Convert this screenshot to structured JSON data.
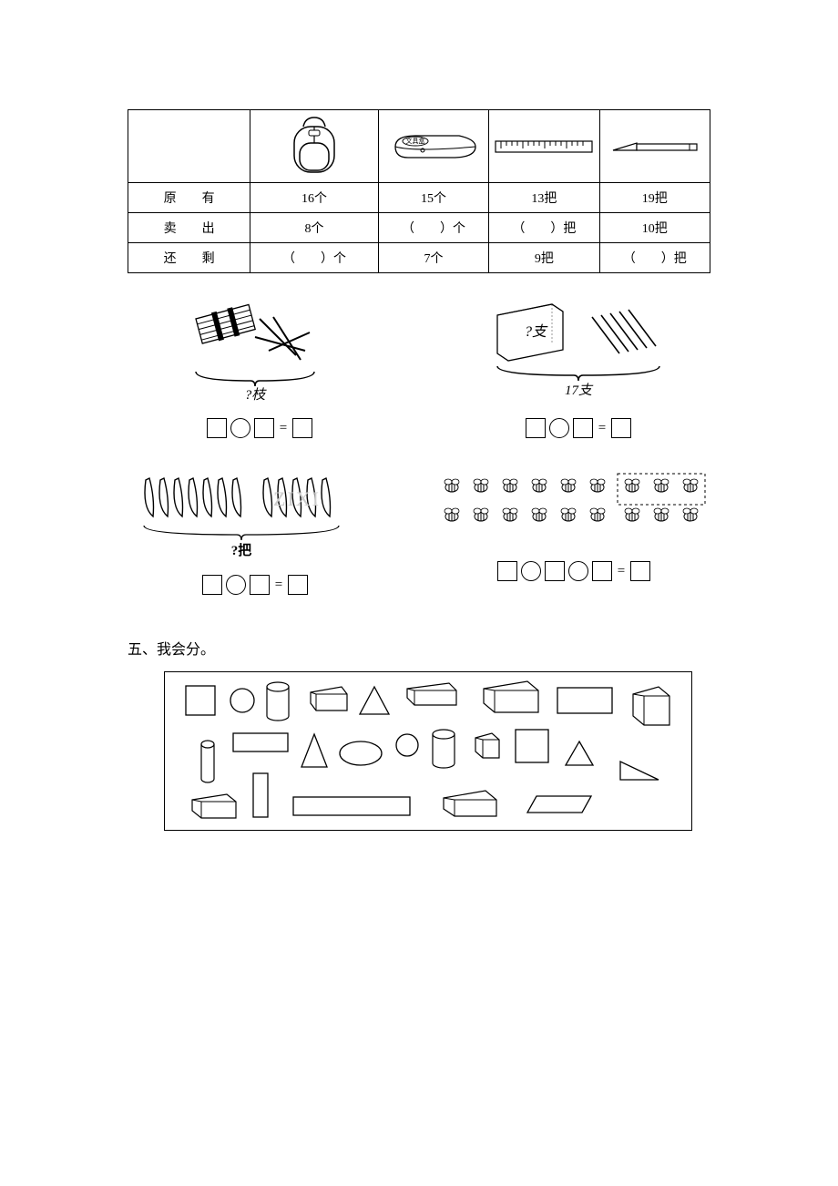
{
  "table": {
    "headers": [
      "",
      "backpack",
      "pencilcase",
      "ruler",
      "knife"
    ],
    "row_labels": [
      "原　　有",
      "卖　　出",
      "还　　剩"
    ],
    "cells": {
      "backpack": {
        "原有": "16个",
        "卖出": "8个",
        "还剩": "（　　）个"
      },
      "pencilcase": {
        "原有": "15个",
        "卖出": "（　　）个",
        "还剩": "7个"
      },
      "ruler": {
        "原有": "13把",
        "卖出": "（　　）把",
        "还剩": "9把"
      },
      "knife": {
        "原有": "19把",
        "卖出": "10把",
        "还剩": "（　　）把"
      }
    },
    "pencilcase_label": "文具盒"
  },
  "problems": {
    "p1_caption": "?枝",
    "p2_box_label": "?支",
    "p2_caption": "17支",
    "p3_caption": "?把",
    "eq_sign": "="
  },
  "section5": {
    "title": "五、我会分。",
    "shapes_note": "mixed 2D/3D shapes"
  },
  "colors": {
    "line": "#000000",
    "bg": "#ffffff",
    "faded": "#aaaaaa"
  }
}
